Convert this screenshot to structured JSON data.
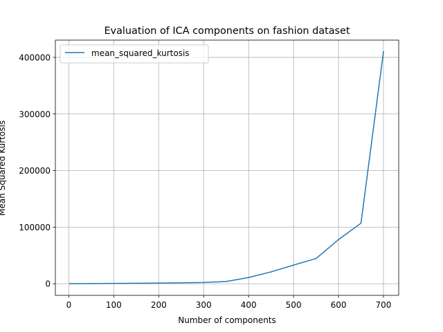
{
  "chart_data": {
    "type": "line",
    "title": "Evaluation of ICA components on fashion dataset",
    "xlabel": "Number of components",
    "ylabel": "Mean Squared Kurtosis",
    "x": [
      2,
      50,
      100,
      150,
      200,
      250,
      300,
      350,
      400,
      450,
      500,
      550,
      600,
      650,
      700
    ],
    "series": [
      {
        "name": "mean_squared_kurtosis",
        "color": "#1f77b4",
        "values": [
          100,
          300,
          600,
          900,
          1200,
          1600,
          2200,
          4000,
          11000,
          21000,
          33000,
          44500,
          78000,
          107000,
          410000
        ]
      }
    ],
    "xlim": [
      -29.9,
      733.9
    ],
    "ylim": [
      -20500,
      430500
    ],
    "xticks": [
      0,
      100,
      200,
      300,
      400,
      500,
      600,
      700
    ],
    "xtick_labels": [
      "0",
      "100",
      "200",
      "300",
      "400",
      "500",
      "600",
      "700"
    ],
    "yticks": [
      0,
      100000,
      200000,
      300000,
      400000
    ],
    "ytick_labels": [
      "0",
      "100000",
      "200000",
      "300000",
      "400000"
    ],
    "grid": true,
    "legend": "top-left"
  }
}
